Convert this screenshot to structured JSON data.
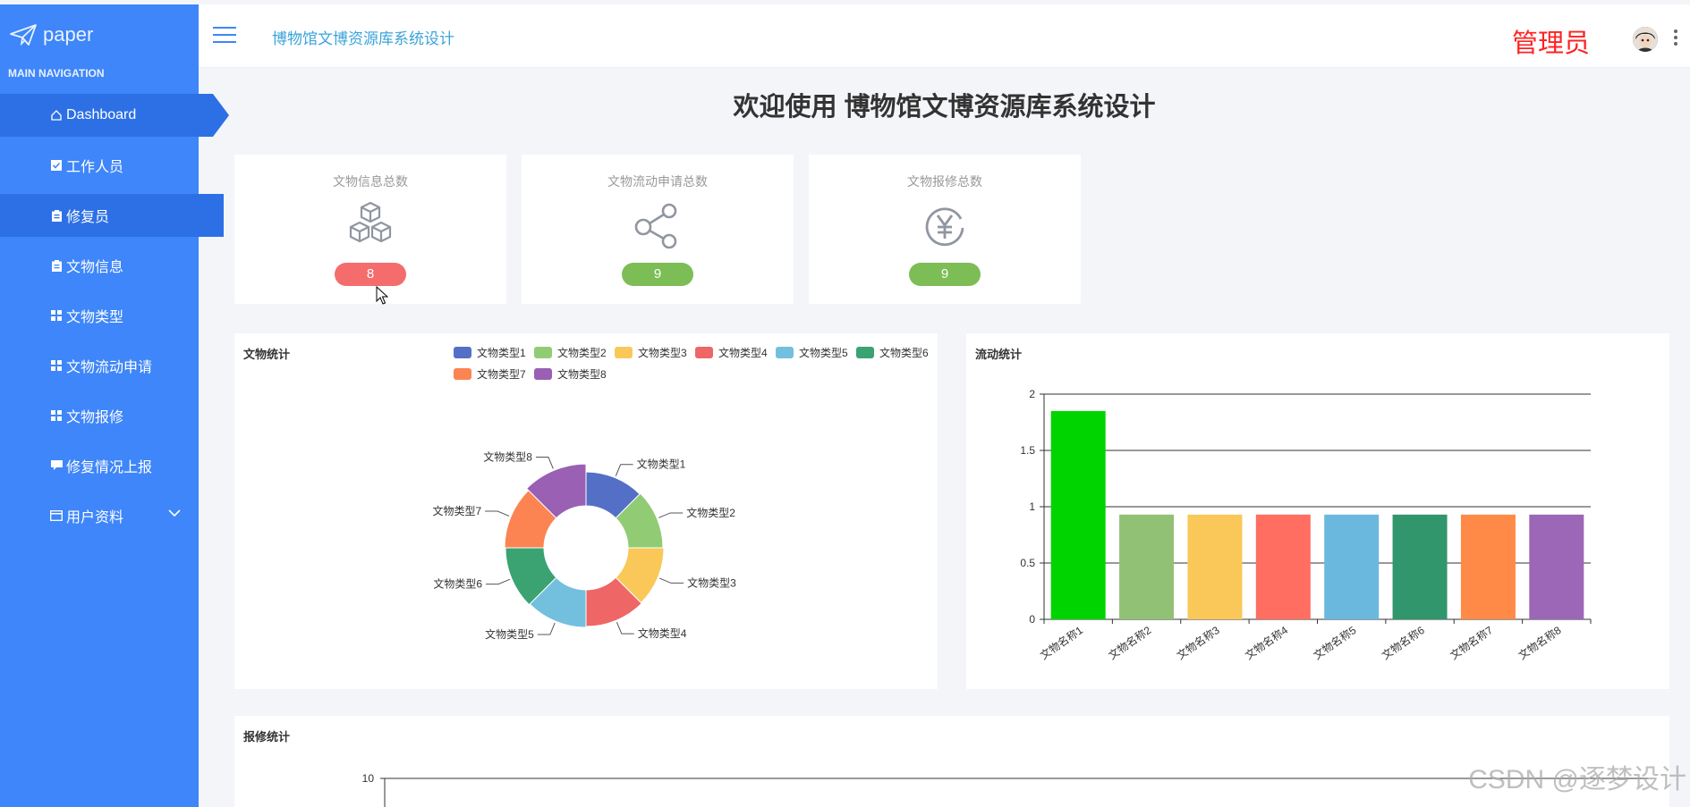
{
  "brand": {
    "name": "paper"
  },
  "sidebar": {
    "caption": "MAIN NAVIGATION",
    "items": [
      {
        "label": "Dashboard",
        "icon": "home-icon"
      },
      {
        "label": "工作人员",
        "icon": "checkbox-icon"
      },
      {
        "label": "修复员",
        "icon": "clipboard-icon"
      },
      {
        "label": "文物信息",
        "icon": "clipboard-icon"
      },
      {
        "label": "文物类型",
        "icon": "grid-icon"
      },
      {
        "label": "文物流动申请",
        "icon": "grid-icon"
      },
      {
        "label": "文物报修",
        "icon": "grid-icon"
      },
      {
        "label": "修复情况上报",
        "icon": "comment-icon"
      },
      {
        "label": "用户资料",
        "icon": "card-icon"
      }
    ]
  },
  "header": {
    "title": "博物馆文博资源库系统设计",
    "user": "管理员"
  },
  "welcome": "欢迎使用 博物馆文博资源库系统设计",
  "stats": [
    {
      "title": "文物信息总数",
      "value": "8",
      "color": "#f56c6c",
      "icon": "cubes-icon"
    },
    {
      "title": "文物流动申请总数",
      "value": "9",
      "color": "#7cbd55",
      "icon": "share-icon"
    },
    {
      "title": "文物报修总数",
      "value": "9",
      "color": "#7cbd55",
      "icon": "yen-icon"
    }
  ],
  "charts": {
    "pie": {
      "title": "文物统计",
      "chart_data": {
        "type": "pie",
        "categories": [
          "文物类型1",
          "文物类型2",
          "文物类型3",
          "文物类型4",
          "文物类型5",
          "文物类型6",
          "文物类型7",
          "文物类型8"
        ],
        "values": [
          1,
          1,
          1,
          1,
          1,
          1,
          1,
          1
        ],
        "colors": [
          "#5470c6",
          "#91cc75",
          "#fac858",
          "#ee6666",
          "#73c0de",
          "#3ba272",
          "#fc8452",
          "#9a60b4"
        ],
        "legend_position": "top-right"
      }
    },
    "bar": {
      "title": "流动统计",
      "chart_data": {
        "type": "bar",
        "categories": [
          "文物名称1",
          "文物名称2",
          "文物名称3",
          "文物名称4",
          "文物名称5",
          "文物名称6",
          "文物名称7",
          "文物名称8"
        ],
        "values": [
          1.85,
          0.93,
          0.93,
          0.93,
          0.93,
          0.93,
          0.93,
          0.93
        ],
        "colors": [
          "#00d400",
          "#91c175",
          "#fac858",
          "#ff6e60",
          "#6bb8df",
          "#32966d",
          "#ff8a47",
          "#9c67b6"
        ],
        "ylim": [
          0,
          2
        ],
        "yticks": [
          "0",
          "0.5",
          "1",
          "1.5",
          "2"
        ],
        "grid": true
      }
    },
    "repair": {
      "title": "报修统计",
      "chart_data": {
        "type": "bar",
        "yticks": [
          "10"
        ]
      }
    }
  },
  "watermark": "CSDN @逐梦设计"
}
